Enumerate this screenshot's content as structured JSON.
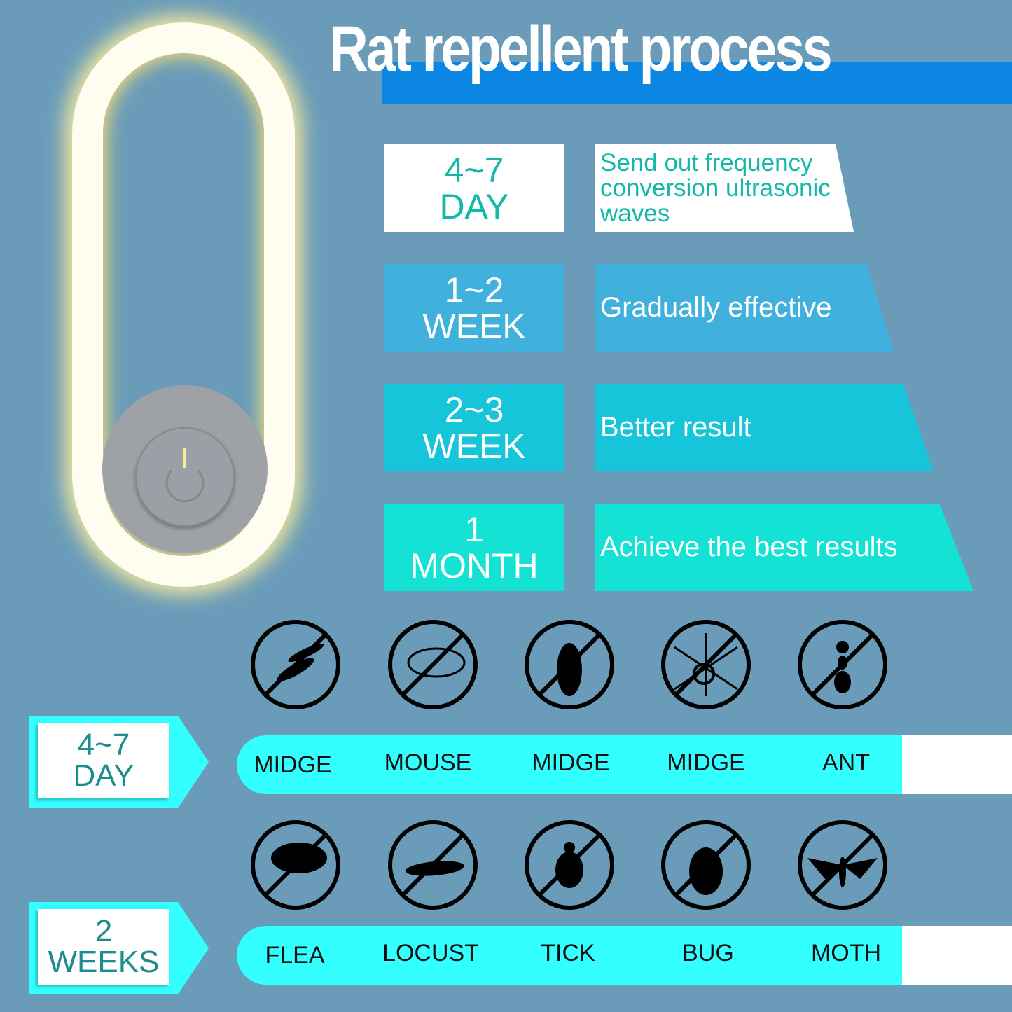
{
  "title": "Rat repellent process",
  "colors": {
    "background": "#6a9cb9",
    "title_bar": "#0b86e2",
    "pill": "#33ffff",
    "row_colors": [
      "#ffffff",
      "#40b1dd",
      "#16c5d9",
      "#14e2d4"
    ]
  },
  "stages": [
    {
      "time_line1": "4~7",
      "time_line2": "DAY",
      "description": "Send out frequency conversion ultrasonic waves"
    },
    {
      "time_line1": "1~2",
      "time_line2": "WEEK",
      "description": "Gradually effective"
    },
    {
      "time_line1": "2~3",
      "time_line2": "WEEK",
      "description": "Better result"
    },
    {
      "time_line1": "1",
      "time_line2": "MONTH",
      "description": "Achieve the best results"
    }
  ],
  "pest_groups": [
    {
      "tag_line1": "4~7",
      "tag_line2": "DAY",
      "pests": [
        {
          "label": "MIDGE",
          "icon": "no-mosquito-icon"
        },
        {
          "label": "MOUSE",
          "icon": "no-mouse-icon"
        },
        {
          "label": "MIDGE",
          "icon": "no-cockroach-icon"
        },
        {
          "label": "MIDGE",
          "icon": "no-spider-icon"
        },
        {
          "label": "ANT",
          "icon": "no-ant-icon"
        }
      ]
    },
    {
      "tag_line1": "2",
      "tag_line2": "WEEKS",
      "pests": [
        {
          "label": "FLEA",
          "icon": "no-flea-icon"
        },
        {
          "label": "LOCUST",
          "icon": "no-locust-icon"
        },
        {
          "label": "TICK",
          "icon": "no-tick-icon"
        },
        {
          "label": "BUG",
          "icon": "no-bug-icon"
        },
        {
          "label": "MOTH",
          "icon": "no-moth-icon"
        }
      ]
    }
  ]
}
